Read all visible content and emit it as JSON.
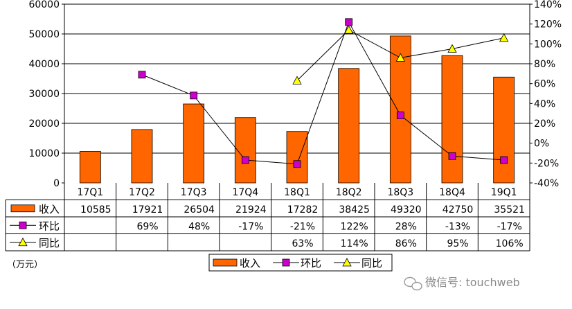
{
  "chart_data": {
    "type": "bar",
    "categories": [
      "17Q1",
      "17Q2",
      "17Q3",
      "17Q4",
      "18Q1",
      "18Q2",
      "18Q3",
      "18Q4",
      "19Q1"
    ],
    "series": [
      {
        "name": "收入",
        "kind": "bar",
        "axis": "left",
        "color": "#FF6600",
        "values": [
          10585,
          17921,
          26504,
          21924,
          17282,
          38425,
          49320,
          42750,
          35521
        ],
        "labels": [
          "10585",
          "17921",
          "26504",
          "21924",
          "17282",
          "38425",
          "49320",
          "42750",
          "35521"
        ]
      },
      {
        "name": "环比",
        "kind": "line",
        "axis": "right",
        "color": "#CC00CC",
        "marker": "square",
        "values": [
          null,
          69,
          48,
          -17,
          -21,
          122,
          28,
          -13,
          -17
        ],
        "labels": [
          "",
          "69%",
          "48%",
          "-17%",
          "-21%",
          "122%",
          "28%",
          "-13%",
          "-17%"
        ]
      },
      {
        "name": "同比",
        "kind": "line",
        "axis": "right",
        "color": "#FFFF00",
        "marker": "triangle",
        "values": [
          null,
          null,
          null,
          null,
          63,
          114,
          86,
          95,
          106
        ],
        "labels": [
          "",
          "",
          "",
          "",
          "63%",
          "114%",
          "86%",
          "95%",
          "106%"
        ]
      }
    ],
    "y_left": {
      "min": 0,
      "max": 60000,
      "ticks": [
        "0",
        "10000",
        "20000",
        "30000",
        "40000",
        "50000",
        "60000"
      ]
    },
    "y_right": {
      "min": -40,
      "max": 140,
      "ticks": [
        "-40%",
        "-20%",
        "0%",
        "20%",
        "40%",
        "60%",
        "80%",
        "100%",
        "120%",
        "140%"
      ]
    },
    "grid": true,
    "legend_position": "bottom-center",
    "unit_label": "（万元）"
  },
  "watermark": "微信号: touchweb"
}
